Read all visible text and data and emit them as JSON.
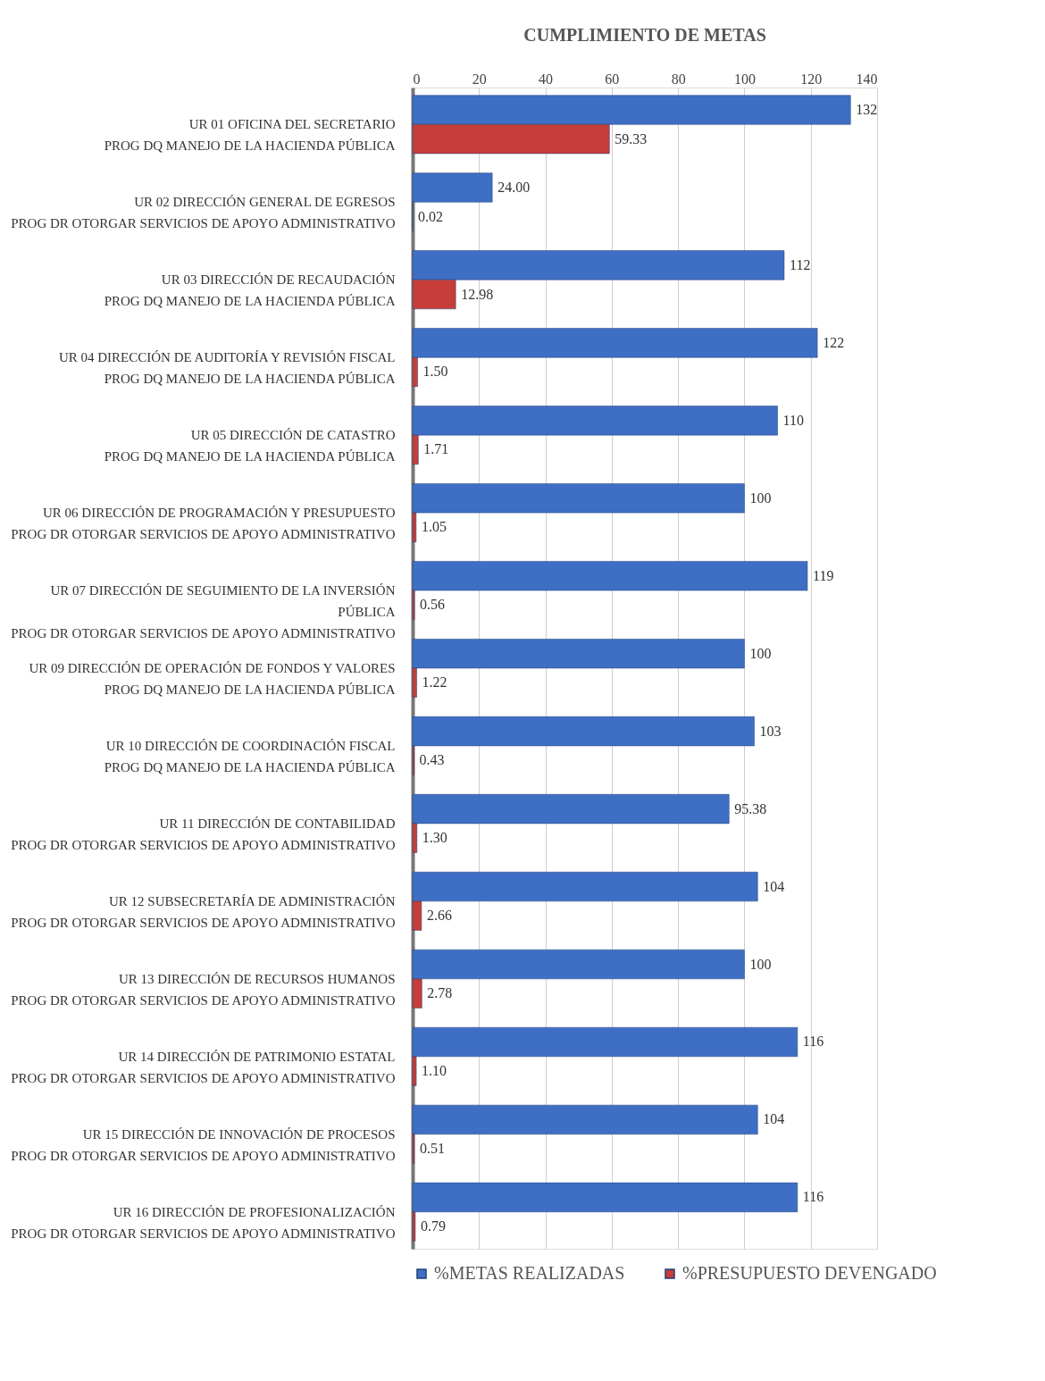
{
  "chart_data": {
    "type": "bar",
    "orientation": "horizontal",
    "title": "CUMPLIMIENTO DE METAS",
    "categories": [
      "UR 01 OFICINA DEL SECRETARIO\nPROG DQ MANEJO DE LA HACIENDA PÚBLICA",
      "UR 02 DIRECCIÓN GENERAL DE EGRESOS\nPROG DR OTORGAR SERVICIOS DE APOYO ADMINISTRATIVO",
      "UR 03 DIRECCIÓN DE RECAUDACIÓN\nPROG DQ MANEJO DE LA HACIENDA PÚBLICA",
      "UR 04 DIRECCIÓN DE AUDITORÍA Y REVISIÓN FISCAL\nPROG DQ MANEJO DE LA HACIENDA PÚBLICA",
      "UR 05 DIRECCIÓN DE CATASTRO\nPROG DQ MANEJO DE LA HACIENDA PÚBLICA",
      "UR 06 DIRECCIÓN DE PROGRAMACIÓN Y PRESUPUESTO\nPROG DR OTORGAR SERVICIOS DE APOYO ADMINISTRATIVO",
      "UR 07 DIRECCIÓN DE SEGUIMIENTO DE LA INVERSIÓN\nPÚBLICA\nPROG DR OTORGAR SERVICIOS DE APOYO ADMINISTRATIVO",
      "UR 09 DIRECCIÓN DE OPERACIÓN DE FONDOS Y VALORES\nPROG DQ MANEJO DE LA HACIENDA PÚBLICA",
      "UR 10 DIRECCIÓN DE COORDINACIÓN FISCAL\nPROG DQ MANEJO DE LA HACIENDA PÚBLICA",
      "UR 11 DIRECCIÓN DE CONTABILIDAD\nPROG DR OTORGAR SERVICIOS DE APOYO ADMINISTRATIVO",
      "UR 12 SUBSECRETARÍA DE ADMINISTRACIÓN\nPROG DR OTORGAR SERVICIOS DE APOYO ADMINISTRATIVO",
      "UR 13 DIRECCIÓN DE RECURSOS HUMANOS\nPROG DR OTORGAR SERVICIOS DE APOYO ADMINISTRATIVO",
      "UR 14 DIRECCIÓN DE PATRIMONIO ESTATAL\nPROG DR OTORGAR SERVICIOS DE APOYO ADMINISTRATIVO",
      "UR 15 DIRECCIÓN DE INNOVACIÓN DE PROCESOS\nPROG DR OTORGAR SERVICIOS DE APOYO ADMINISTRATIVO",
      "UR 16 DIRECCIÓN DE PROFESIONALIZACIÓN\nPROG DR OTORGAR SERVICIOS DE APOYO ADMINISTRATIVO"
    ],
    "series": [
      {
        "name": "%METAS REALIZADAS",
        "color": "#3f6fc4",
        "values": [
          132,
          24.0,
          112,
          122,
          110,
          100,
          119,
          100,
          103,
          95.38,
          104,
          100,
          116,
          104,
          116
        ],
        "value_labels": [
          "132",
          "24.00",
          "112",
          "122",
          "110",
          "100",
          "119",
          "100",
          "103",
          "95.38",
          "104",
          "100",
          "116",
          "104",
          "116"
        ]
      },
      {
        "name": "%PRESUPUESTO DEVENGADO",
        "color": "#c63d3a",
        "values": [
          59.33,
          0.02,
          12.98,
          1.5,
          1.71,
          1.05,
          0.56,
          1.22,
          0.43,
          1.3,
          2.66,
          2.78,
          1.1,
          0.51,
          0.79
        ],
        "value_labels": [
          "59.33",
          "0.02",
          "12.98",
          "1.50",
          "1.71",
          "1.05",
          "0.56",
          "1.22",
          "0.43",
          "1.30",
          "2.66",
          "2.78",
          "1.10",
          "0.51",
          "0.79"
        ]
      }
    ],
    "xlim": [
      0,
      140
    ],
    "xticks": [
      0,
      20,
      40,
      60,
      80,
      100,
      120,
      140
    ],
    "grid": "x",
    "legend": "bottom"
  }
}
